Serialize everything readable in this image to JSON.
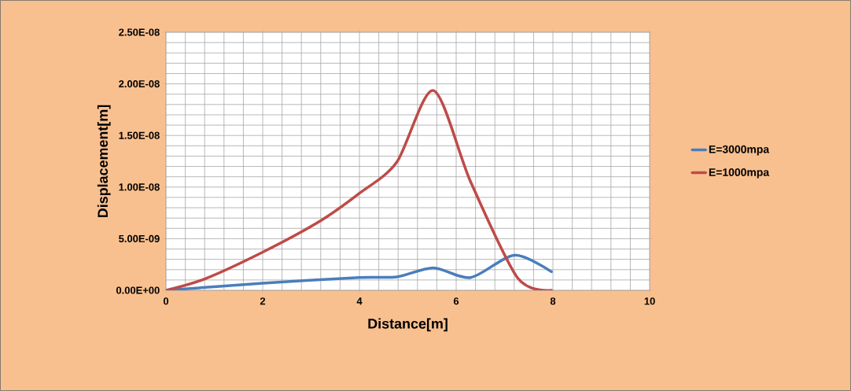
{
  "chart_data": {
    "type": "line",
    "xlabel": "Distance[m]",
    "ylabel": "Displacement[m]",
    "xlim": [
      0,
      10
    ],
    "xticks": [
      0,
      2,
      4,
      6,
      8,
      10
    ],
    "ylim": [
      0,
      2.5e-08
    ],
    "yticks": [
      {
        "value": 0,
        "label": "0.00E+00"
      },
      {
        "value": 5e-09,
        "label": "5.00E-09"
      },
      {
        "value": 1e-08,
        "label": "1.00E-08"
      },
      {
        "value": 1.5e-08,
        "label": "1.50E-08"
      },
      {
        "value": 2e-08,
        "label": "2.00E-08"
      },
      {
        "value": 2.5e-08,
        "label": "2.50E-08"
      }
    ],
    "grid": true,
    "legend": "right",
    "marker": "none",
    "line_style": "solid",
    "series": [
      {
        "name": "E=3000mpa",
        "color": "#4a7ebb",
        "x": [
          0,
          2,
          4,
          4.77,
          5.53,
          6.3,
          7.2,
          7.97
        ],
        "values": [
          0,
          6.8e-10,
          1.24e-09,
          1.3e-09,
          2.17e-09,
          1.24e-09,
          3.4e-09,
          1.8e-09
        ]
      },
      {
        "name": "E=1000mpa",
        "color": "#be4b48",
        "x": [
          0,
          0.8,
          2,
          3.2,
          4,
          4.77,
          5.53,
          6.3,
          7.27,
          7.97
        ],
        "values": [
          0,
          1.1e-09,
          3.7e-09,
          6.75e-09,
          9.4e-09,
          1.24e-08,
          1.935e-08,
          1.05e-08,
          1.2e-09,
          0
        ]
      }
    ]
  }
}
